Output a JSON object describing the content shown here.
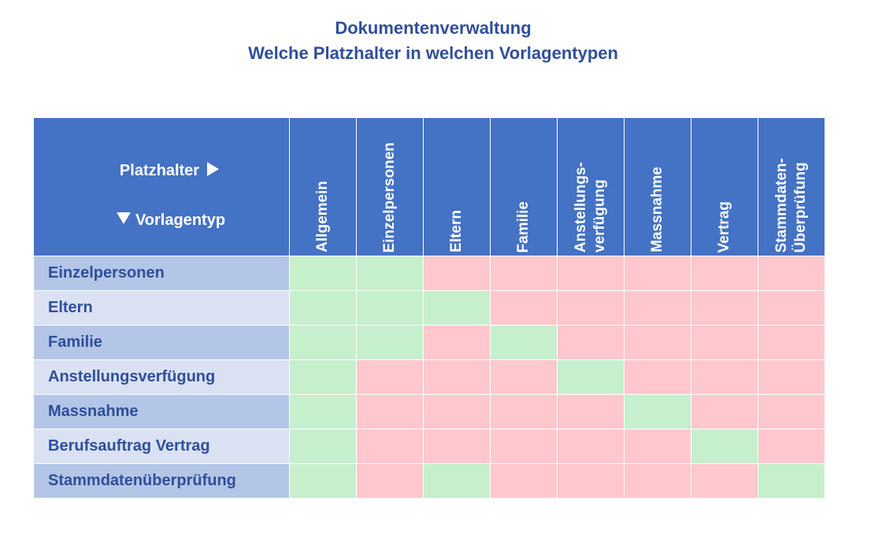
{
  "title": {
    "line1": "Dokumentenverwaltung",
    "line2": "Welche Platzhalter in welchen Vorlagentypen"
  },
  "corner": {
    "platzhalter_label": "Platzhalter",
    "vorlagentyp_label": "Vorlagentyp"
  },
  "columns": [
    "Allgemein",
    "Einzelpersonen",
    "Eltern",
    "Familie",
    "Anstellungs-\nverfügung",
    "Massnahme",
    "Vertrag",
    "Stammdaten-\nÜberprüfung"
  ],
  "rows": [
    {
      "label": "Einzelpersonen",
      "cells": [
        true,
        true,
        false,
        false,
        false,
        false,
        false,
        false
      ]
    },
    {
      "label": "Eltern",
      "cells": [
        true,
        true,
        true,
        false,
        false,
        false,
        false,
        false
      ]
    },
    {
      "label": "Familie",
      "cells": [
        true,
        true,
        false,
        true,
        false,
        false,
        false,
        false
      ]
    },
    {
      "label": "Anstellungsverfügung",
      "cells": [
        true,
        false,
        false,
        false,
        true,
        false,
        false,
        false
      ]
    },
    {
      "label": "Massnahme",
      "cells": [
        true,
        false,
        false,
        false,
        false,
        true,
        false,
        false
      ]
    },
    {
      "label": "Berufsauftrag Vertrag",
      "cells": [
        true,
        false,
        false,
        false,
        false,
        false,
        true,
        false
      ]
    },
    {
      "label": "Stammdatenüberprüfung",
      "cells": [
        true,
        false,
        true,
        false,
        false,
        false,
        false,
        true
      ]
    }
  ],
  "colors": {
    "header_blue": "#4472c4",
    "title_text": "#2f4f9a",
    "row_label_dark": "#b4c6e7",
    "row_label_light": "#d9e1f2",
    "included_green": "#c6efce",
    "excluded_red": "#ffc7ce"
  }
}
